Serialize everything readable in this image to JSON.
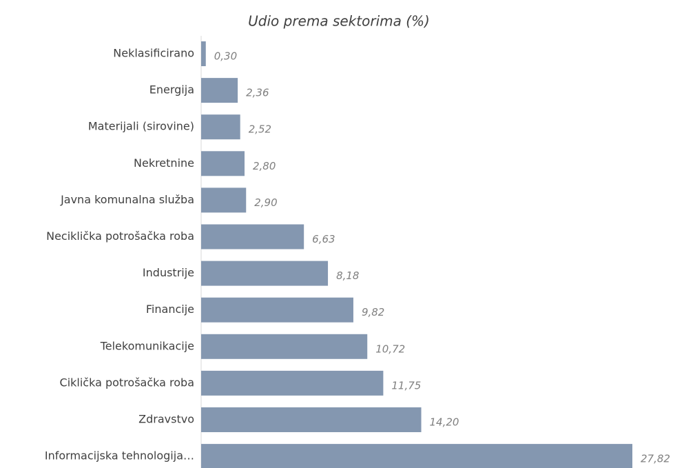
{
  "chart_data": {
    "type": "bar",
    "orientation": "horizontal",
    "title": "Udio prema sektorima (%)",
    "categories": [
      "Neklasificirano",
      "Energija",
      "Materijali (sirovine)",
      "Nekretnine",
      "Javna komunalna služba",
      "Neciklička potrošačka roba",
      "Industrije",
      "Financije",
      "Telekomunikacije",
      "Ciklička potrošačka roba",
      "Zdravstvo",
      "Informacijska tehnologija…"
    ],
    "values": [
      0.3,
      2.36,
      2.52,
      2.8,
      2.9,
      6.63,
      8.18,
      9.82,
      10.72,
      11.75,
      14.2,
      27.82
    ],
    "value_labels": [
      "0,30",
      "2,36",
      "2,52",
      "2,80",
      "2,90",
      "6,63",
      "8,18",
      "9,82",
      "10,72",
      "11,75",
      "14,20",
      "27,82"
    ],
    "color": "#8497b0"
  }
}
